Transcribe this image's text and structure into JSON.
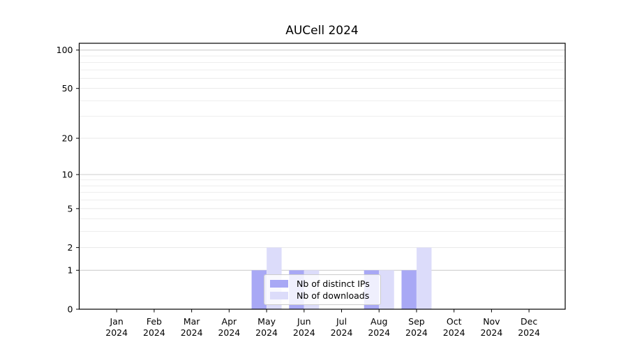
{
  "figure": {
    "background": "#ffffff",
    "plot_border_color": "#000000",
    "grid_major_color": "#c8c8c8",
    "grid_minor_color": "#e7e7e7"
  },
  "chart_data": {
    "type": "bar",
    "title": "AUCell 2024",
    "categories": [
      "Jan 2024",
      "Feb 2024",
      "Mar 2024",
      "Apr 2024",
      "May 2024",
      "Jun 2024",
      "Jul 2024",
      "Aug 2024",
      "Sep 2024",
      "Oct 2024",
      "Nov 2024",
      "Dec 2024"
    ],
    "series": [
      {
        "name": "Nb of distinct IPs",
        "color": "#a8a8f5",
        "values": [
          0,
          0,
          0,
          0,
          1,
          1,
          0,
          1,
          1,
          0,
          0,
          0
        ]
      },
      {
        "name": "Nb of downloads",
        "color": "#dcdcfa",
        "values": [
          0,
          0,
          0,
          0,
          2,
          1,
          0,
          1,
          2,
          0,
          0,
          0
        ]
      }
    ],
    "xlabel": "",
    "ylabel": "",
    "yscale": "log1p",
    "ylim": [
      0,
      113
    ],
    "y_ticks": [
      0,
      1,
      2,
      5,
      10,
      20,
      50,
      100
    ],
    "y_minor_gridlines": [
      3,
      4,
      6,
      7,
      8,
      9,
      30,
      40,
      60,
      70,
      80,
      90
    ],
    "y_emphasized_gridlines": [
      1,
      10,
      100
    ],
    "grid": true,
    "legend_position": "lower center (inside plot)"
  }
}
